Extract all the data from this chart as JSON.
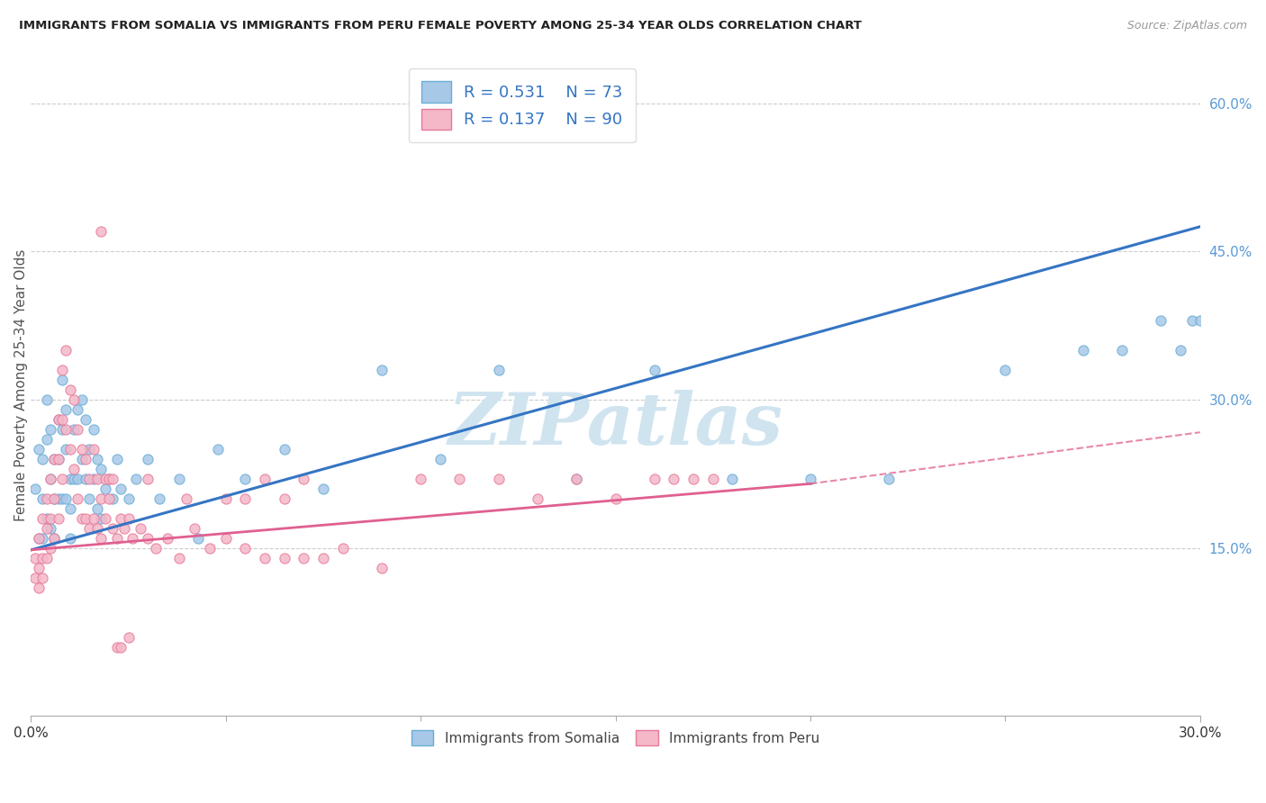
{
  "title": "IMMIGRANTS FROM SOMALIA VS IMMIGRANTS FROM PERU FEMALE POVERTY AMONG 25-34 YEAR OLDS CORRELATION CHART",
  "source": "Source: ZipAtlas.com",
  "ylabel": "Female Poverty Among 25-34 Year Olds",
  "xlim": [
    0.0,
    0.3
  ],
  "ylim": [
    -0.02,
    0.65
  ],
  "xtick_positions": [
    0.0,
    0.3
  ],
  "xtick_labels": [
    "0.0%",
    "30.0%"
  ],
  "xtick_minor": [
    0.05,
    0.1,
    0.15,
    0.2,
    0.25
  ],
  "yticks_right": [
    0.15,
    0.3,
    0.45,
    0.6
  ],
  "ytick_labels_right": [
    "15.0%",
    "30.0%",
    "45.0%",
    "60.0%"
  ],
  "somalia_color": "#a8c8e8",
  "somalia_edge": "#6aaed6",
  "somalia_line_color": "#3575c3",
  "peru_color": "#f4b8c8",
  "peru_edge": "#e87a9a",
  "peru_line_color": "#e06090",
  "R_somalia": 0.531,
  "N_somalia": 73,
  "R_peru": 0.137,
  "N_peru": 90,
  "watermark": "ZIPatlas",
  "watermark_color": "#d0e4f0",
  "somalia_line_x0": 0.0,
  "somalia_line_y0": 0.148,
  "somalia_line_x1": 0.3,
  "somalia_line_y1": 0.475,
  "peru_line_x0": 0.0,
  "peru_line_y0": 0.148,
  "peru_line_x1_solid": 0.2,
  "peru_line_y1_solid": 0.215,
  "peru_line_x1_dash": 0.3,
  "peru_line_y1_dash": 0.267,
  "somalia_scatter_x": [
    0.001,
    0.002,
    0.002,
    0.003,
    0.003,
    0.003,
    0.004,
    0.004,
    0.004,
    0.005,
    0.005,
    0.005,
    0.006,
    0.006,
    0.006,
    0.007,
    0.007,
    0.007,
    0.008,
    0.008,
    0.008,
    0.009,
    0.009,
    0.009,
    0.01,
    0.01,
    0.01,
    0.011,
    0.011,
    0.012,
    0.012,
    0.013,
    0.013,
    0.014,
    0.014,
    0.015,
    0.015,
    0.016,
    0.016,
    0.017,
    0.017,
    0.018,
    0.018,
    0.019,
    0.02,
    0.021,
    0.022,
    0.023,
    0.025,
    0.027,
    0.03,
    0.033,
    0.038,
    0.043,
    0.048,
    0.055,
    0.065,
    0.075,
    0.09,
    0.105,
    0.12,
    0.14,
    0.16,
    0.18,
    0.2,
    0.22,
    0.25,
    0.27,
    0.28,
    0.29,
    0.295,
    0.298,
    0.3
  ],
  "somalia_scatter_y": [
    0.21,
    0.25,
    0.16,
    0.24,
    0.2,
    0.16,
    0.3,
    0.26,
    0.18,
    0.27,
    0.22,
    0.17,
    0.24,
    0.2,
    0.16,
    0.28,
    0.24,
    0.2,
    0.32,
    0.27,
    0.2,
    0.29,
    0.25,
    0.2,
    0.22,
    0.19,
    0.16,
    0.27,
    0.22,
    0.29,
    0.22,
    0.3,
    0.24,
    0.28,
    0.22,
    0.25,
    0.2,
    0.27,
    0.22,
    0.24,
    0.19,
    0.23,
    0.18,
    0.21,
    0.22,
    0.2,
    0.24,
    0.21,
    0.2,
    0.22,
    0.24,
    0.2,
    0.22,
    0.16,
    0.25,
    0.22,
    0.25,
    0.21,
    0.33,
    0.24,
    0.33,
    0.22,
    0.33,
    0.22,
    0.22,
    0.22,
    0.33,
    0.35,
    0.35,
    0.38,
    0.35,
    0.38,
    0.38
  ],
  "peru_scatter_x": [
    0.001,
    0.001,
    0.002,
    0.002,
    0.002,
    0.003,
    0.003,
    0.003,
    0.004,
    0.004,
    0.004,
    0.005,
    0.005,
    0.005,
    0.006,
    0.006,
    0.006,
    0.007,
    0.007,
    0.007,
    0.008,
    0.008,
    0.008,
    0.009,
    0.009,
    0.01,
    0.01,
    0.011,
    0.011,
    0.012,
    0.012,
    0.013,
    0.013,
    0.014,
    0.014,
    0.015,
    0.015,
    0.016,
    0.016,
    0.017,
    0.017,
    0.018,
    0.018,
    0.019,
    0.02,
    0.021,
    0.022,
    0.023,
    0.024,
    0.025,
    0.026,
    0.028,
    0.03,
    0.032,
    0.035,
    0.038,
    0.042,
    0.046,
    0.05,
    0.055,
    0.06,
    0.065,
    0.07,
    0.075,
    0.08,
    0.09,
    0.1,
    0.11,
    0.12,
    0.13,
    0.14,
    0.15,
    0.16,
    0.165,
    0.17,
    0.175,
    0.03,
    0.04,
    0.05,
    0.055,
    0.06,
    0.065,
    0.07,
    0.018,
    0.019,
    0.02,
    0.021,
    0.022,
    0.023,
    0.025
  ],
  "peru_scatter_y": [
    0.14,
    0.12,
    0.16,
    0.13,
    0.11,
    0.18,
    0.14,
    0.12,
    0.2,
    0.17,
    0.14,
    0.22,
    0.18,
    0.15,
    0.24,
    0.2,
    0.16,
    0.28,
    0.24,
    0.18,
    0.33,
    0.28,
    0.22,
    0.35,
    0.27,
    0.31,
    0.25,
    0.3,
    0.23,
    0.27,
    0.2,
    0.25,
    0.18,
    0.24,
    0.18,
    0.22,
    0.17,
    0.25,
    0.18,
    0.22,
    0.17,
    0.2,
    0.16,
    0.18,
    0.2,
    0.17,
    0.16,
    0.18,
    0.17,
    0.18,
    0.16,
    0.17,
    0.16,
    0.15,
    0.16,
    0.14,
    0.17,
    0.15,
    0.16,
    0.15,
    0.14,
    0.14,
    0.14,
    0.14,
    0.15,
    0.13,
    0.22,
    0.22,
    0.22,
    0.2,
    0.22,
    0.2,
    0.22,
    0.22,
    0.22,
    0.22,
    0.22,
    0.2,
    0.2,
    0.2,
    0.22,
    0.2,
    0.22,
    0.47,
    0.22,
    0.22,
    0.22,
    0.05,
    0.05,
    0.06
  ]
}
